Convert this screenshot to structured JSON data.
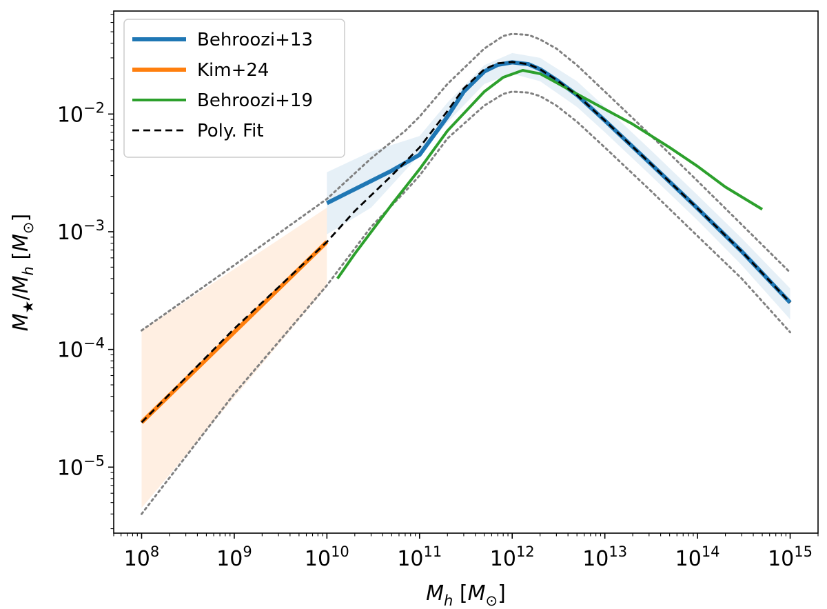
{
  "chart_data": {
    "type": "line",
    "xscale": "log",
    "yscale": "log",
    "xlabel": "M_h [M_⊙]",
    "ylabel": "M_★/M_h [M_⊙]",
    "xlim": [
      50000000.0,
      2000000000000000.0
    ],
    "ylim": [
      2.75e-06,
      0.075
    ],
    "xticks": [
      {
        "value": 100000000.0,
        "base": "10",
        "exp": "8"
      },
      {
        "value": 1000000000.0,
        "base": "10",
        "exp": "9"
      },
      {
        "value": 10000000000.0,
        "base": "10",
        "exp": "10"
      },
      {
        "value": 100000000000.0,
        "base": "10",
        "exp": "11"
      },
      {
        "value": 1000000000000.0,
        "base": "10",
        "exp": "12"
      },
      {
        "value": 10000000000000.0,
        "base": "10",
        "exp": "13"
      },
      {
        "value": 100000000000000.0,
        "base": "10",
        "exp": "14"
      },
      {
        "value": 1000000000000000.0,
        "base": "10",
        "exp": "15"
      }
    ],
    "yticks": [
      {
        "value": 1e-05,
        "base": "10",
        "exp": "−5"
      },
      {
        "value": 0.0001,
        "base": "10",
        "exp": "−4"
      },
      {
        "value": 0.001,
        "base": "10",
        "exp": "−3"
      },
      {
        "value": 0.01,
        "base": "10",
        "exp": "−2"
      }
    ],
    "legend": {
      "position": "top-left",
      "entries": [
        {
          "label": "Behroozi+13",
          "color": "#1f77b4",
          "style": "solid-thick"
        },
        {
          "label": "Kim+24",
          "color": "#ff7f0e",
          "style": "solid-thick"
        },
        {
          "label": "Behroozi+19",
          "color": "#2ca02c",
          "style": "solid"
        },
        {
          "label": "Poly. Fit",
          "color": "#000000",
          "style": "dashed"
        }
      ]
    },
    "series": [
      {
        "name": "Behroozi+13",
        "color": "#1f77b4",
        "style": "solid-thick",
        "x": [
          10000000000.0,
          20000000000.0,
          50000000000.0,
          100000000000.0,
          200000000000.0,
          300000000000.0,
          500000000000.0,
          700000000000.0,
          1000000000000.0,
          1500000000000.0,
          2000000000000.0,
          3000000000000.0,
          5000000000000.0,
          10000000000000.0,
          30000000000000.0,
          100000000000000.0,
          300000000000000.0,
          1000000000000000.0
        ],
        "y": [
          0.00175,
          0.0023,
          0.0033,
          0.0045,
          0.0095,
          0.0155,
          0.023,
          0.0262,
          0.0275,
          0.0265,
          0.024,
          0.0195,
          0.0145,
          0.0088,
          0.0039,
          0.00158,
          0.00068,
          0.00025
        ]
      },
      {
        "name": "Kim+24",
        "color": "#ff7f0e",
        "style": "solid-thick",
        "x": [
          100000000.0,
          10000000000.0
        ],
        "y": [
          2.4e-05,
          0.00082
        ]
      },
      {
        "name": "Behroozi+19",
        "color": "#2ca02c",
        "style": "solid",
        "x": [
          13000000000.0,
          20000000000.0,
          50000000000.0,
          100000000000.0,
          200000000000.0,
          500000000000.0,
          800000000000.0,
          1300000000000.0,
          2000000000000.0,
          3000000000000.0,
          5000000000000.0,
          10000000000000.0,
          20000000000000.0,
          50000000000000.0,
          100000000000000.0,
          200000000000000.0,
          500000000000000.0
        ],
        "y": [
          0.0004,
          0.00065,
          0.0017,
          0.0034,
          0.0072,
          0.0155,
          0.0205,
          0.0235,
          0.022,
          0.0185,
          0.0148,
          0.011,
          0.0082,
          0.0052,
          0.0036,
          0.0024,
          0.00155
        ]
      },
      {
        "name": "Poly. Fit",
        "color": "#000000",
        "style": "dashed",
        "x": [
          100000000.0,
          1000000000.0,
          10000000000.0,
          20000000000.0,
          50000000000.0,
          100000000000.0,
          200000000000.0,
          300000000000.0,
          500000000000.0,
          700000000000.0,
          1000000000000.0,
          1500000000000.0,
          2000000000000.0,
          3000000000000.0,
          5000000000000.0,
          10000000000000.0,
          30000000000000.0,
          100000000000000.0,
          300000000000000.0,
          1000000000000000.0
        ],
        "y": [
          2.4e-05,
          0.00015,
          0.00082,
          0.0015,
          0.003,
          0.0052,
          0.0106,
          0.0165,
          0.024,
          0.027,
          0.0277,
          0.0265,
          0.024,
          0.0195,
          0.0145,
          0.0088,
          0.0039,
          0.00158,
          0.00068,
          0.00025
        ]
      }
    ],
    "bands": [
      {
        "name": "Kim+24 scatter",
        "color": "#ff7f0e",
        "opacity": 0.12,
        "x": [
          100000000.0,
          10000000000.0
        ],
        "lower": [
          4.5e-06,
          0.00034
        ],
        "upper": [
          0.000145,
          0.0016
        ]
      },
      {
        "name": "Behroozi+13 scatter",
        "color": "#1f77b4",
        "opacity": 0.11,
        "x": [
          10000000000.0,
          30000000000.0,
          100000000000.0,
          200000000000.0,
          500000000000.0,
          1000000000000.0,
          2000000000000.0,
          5000000000000.0,
          10000000000000.0,
          30000000000000.0,
          100000000000000.0,
          300000000000000.0,
          1000000000000000.0
        ],
        "lower": [
          0.00095,
          0.0016,
          0.0045,
          0.0085,
          0.018,
          0.022,
          0.019,
          0.0115,
          0.007,
          0.0031,
          0.00125,
          0.00052,
          0.00018
        ],
        "upper": [
          0.0032,
          0.0048,
          0.0065,
          0.0125,
          0.026,
          0.033,
          0.03,
          0.019,
          0.0115,
          0.0051,
          0.00205,
          0.00088,
          0.00033
        ]
      }
    ],
    "envelopes": [
      {
        "name": "upper envelope",
        "color": "#808080",
        "style": "dotted",
        "x": [
          100000000.0,
          1000000000.0,
          10000000000.0,
          30000000000.0,
          70000000000.0,
          100000000000.0,
          200000000000.0,
          500000000000.0,
          800000000000.0,
          1000000000000.0,
          1500000000000.0,
          2000000000000.0,
          3000000000000.0,
          5000000000000.0,
          10000000000000.0,
          30000000000000.0,
          100000000000000.0,
          300000000000000.0,
          1000000000000000.0
        ],
        "y": [
          0.000145,
          0.00052,
          0.0019,
          0.0042,
          0.0072,
          0.0095,
          0.018,
          0.036,
          0.046,
          0.048,
          0.047,
          0.043,
          0.036,
          0.026,
          0.0155,
          0.0068,
          0.0027,
          0.00115,
          0.00045
        ]
      },
      {
        "name": "lower envelope",
        "color": "#808080",
        "style": "dotted",
        "x": [
          100000000.0,
          1000000000.0,
          10000000000.0,
          30000000000.0,
          70000000000.0,
          100000000000.0,
          200000000000.0,
          500000000000.0,
          800000000000.0,
          1000000000000.0,
          1500000000000.0,
          2000000000000.0,
          3000000000000.0,
          5000000000000.0,
          10000000000000.0,
          30000000000000.0,
          100000000000000.0,
          300000000000000.0,
          1000000000000000.0
        ],
        "y": [
          4e-06,
          4.2e-05,
          0.00035,
          0.0011,
          0.0022,
          0.003,
          0.0062,
          0.0118,
          0.0148,
          0.0155,
          0.0152,
          0.0142,
          0.0118,
          0.0086,
          0.0052,
          0.0023,
          0.00092,
          0.0004,
          0.00014
        ]
      }
    ]
  }
}
